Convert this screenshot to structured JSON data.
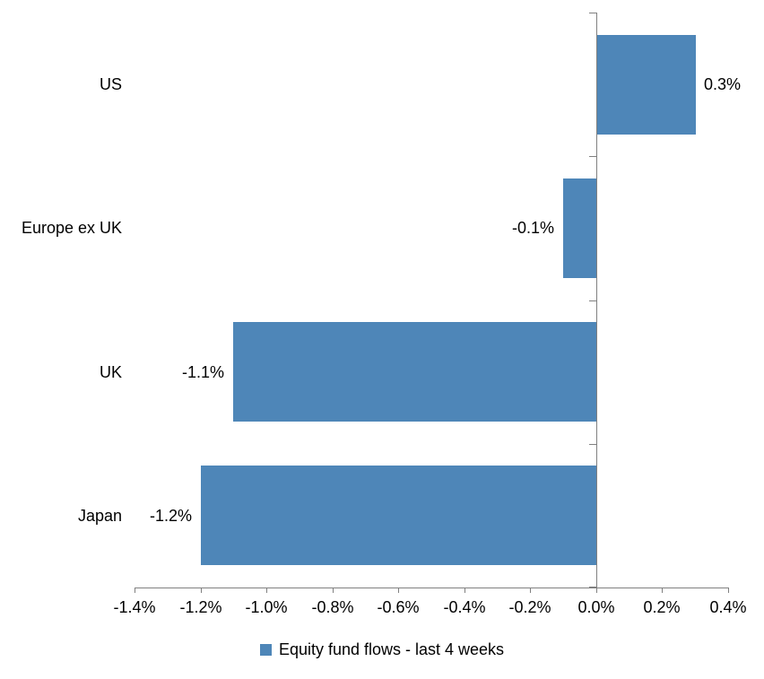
{
  "chart_data": {
    "type": "bar",
    "orientation": "horizontal",
    "categories": [
      "US",
      "Europe ex UK",
      "UK",
      "Japan"
    ],
    "values": [
      0.3,
      -0.1,
      -1.1,
      -1.2
    ],
    "value_labels": [
      "0.3%",
      "-0.1%",
      "-1.1%",
      "-1.2%"
    ],
    "x_tick_labels": [
      "-1.4%",
      "-1.2%",
      "-1.0%",
      "-0.8%",
      "-0.6%",
      "-0.4%",
      "-0.2%",
      "0.0%",
      "0.2%",
      "0.4%"
    ],
    "xlim": [
      -1.4,
      0.4
    ],
    "legend": "Equity fund flows - last 4 weeks",
    "grid": false,
    "legend_position": "bottom-center",
    "bar_color": "#4E86B8",
    "axis_color": "#808080",
    "text_color": "#000000"
  }
}
